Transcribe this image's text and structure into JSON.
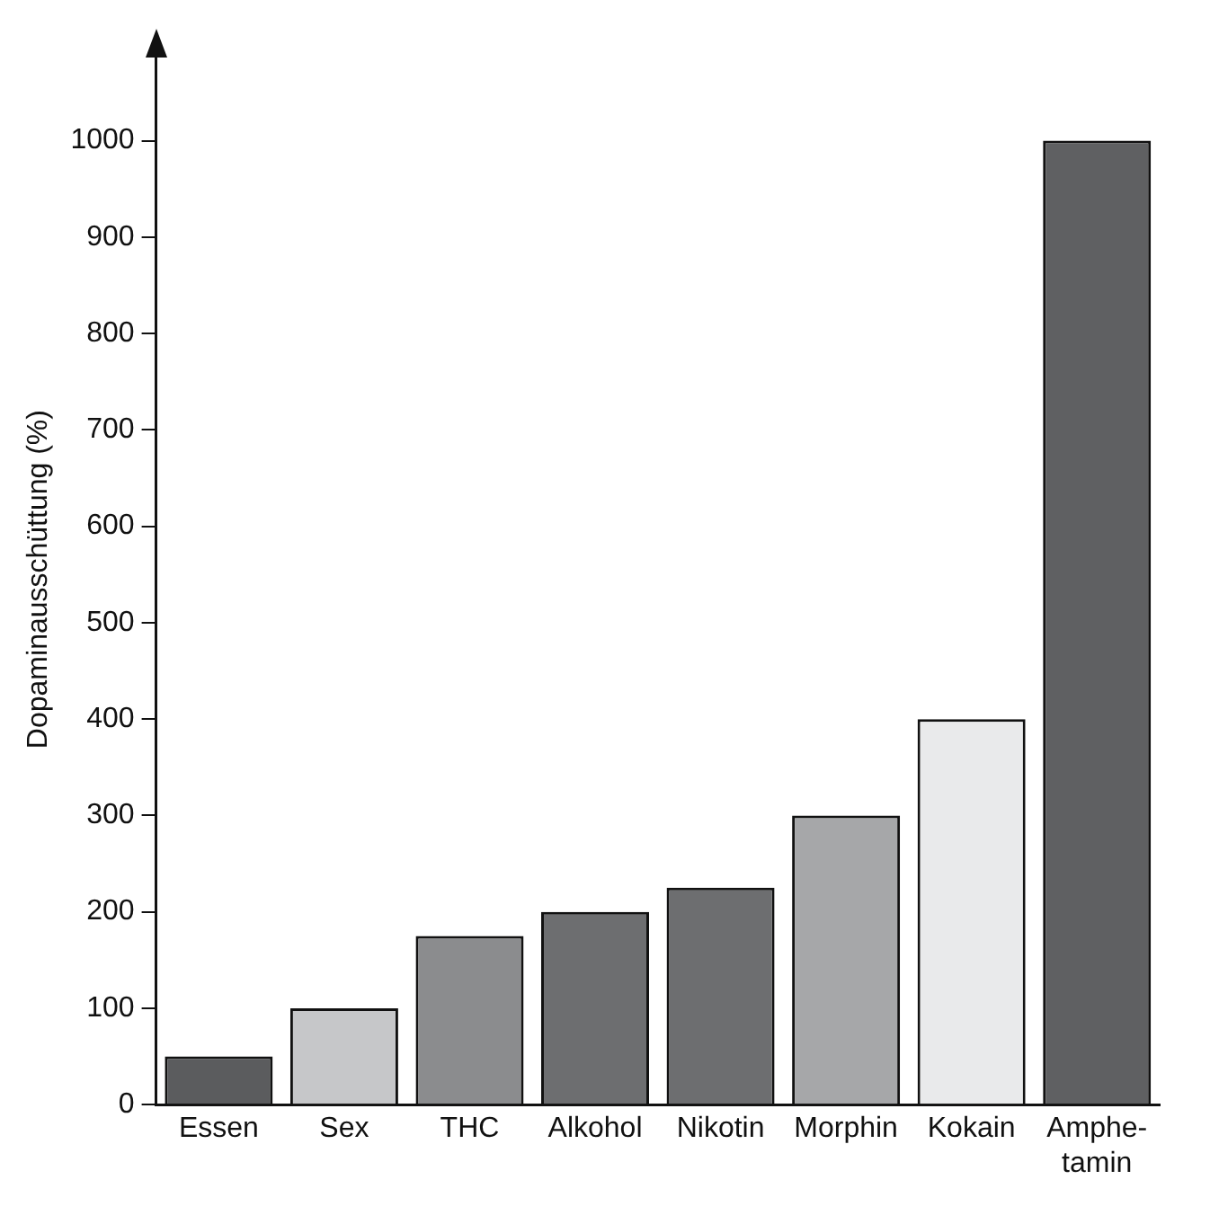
{
  "chart_data": {
    "type": "bar",
    "ylabel": "Dopaminausschüttung (%)",
    "categories": [
      "Essen",
      "Sex",
      "THC",
      "Alkohol",
      "Nikotin",
      "Morphin",
      "Kokain",
      "Amphe-\ntamin"
    ],
    "values": [
      50,
      100,
      175,
      200,
      225,
      300,
      400,
      1000
    ],
    "colors": [
      "#5b5c5e",
      "#c6c7c9",
      "#8b8c8e",
      "#6d6e70",
      "#6d6e70",
      "#a6a7a9",
      "#e9eaeb",
      "#5f6062"
    ],
    "ylim": [
      0,
      1090
    ],
    "yticks": [
      0,
      100,
      200,
      300,
      400,
      500,
      600,
      700,
      800,
      900,
      1000
    ],
    "grid": false,
    "legend": false
  }
}
